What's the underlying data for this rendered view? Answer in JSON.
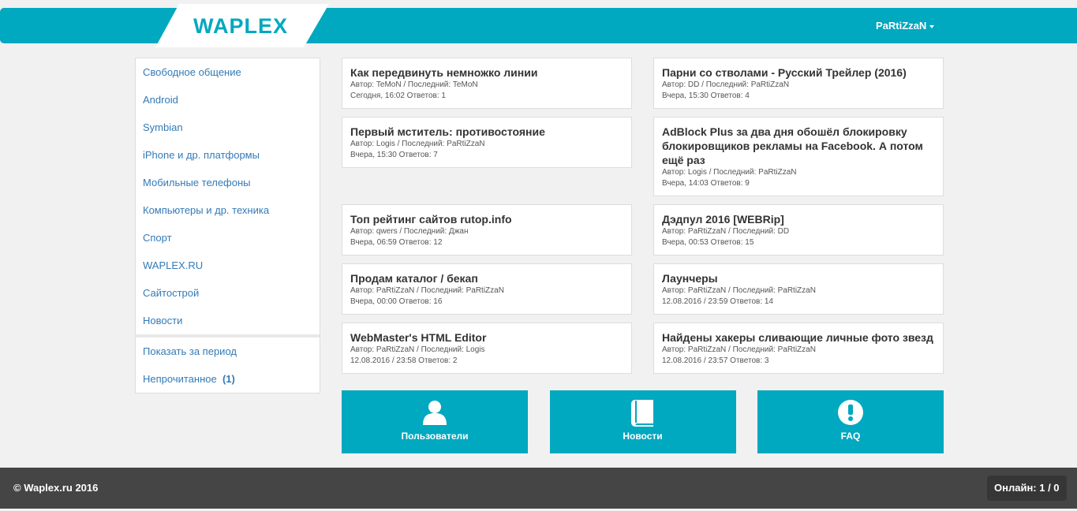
{
  "header": {
    "logo": "WAPLEX",
    "user": "PaRtiZzaN",
    "accent": "#00a8c0"
  },
  "sidebar": {
    "items": [
      "Свободное общение",
      "Android",
      "Symbian",
      "iPhone и др. платформы",
      "Мобильные телефоны",
      "Компьютеры и др. техника",
      "Спорт",
      "WAPLEX.RU",
      "Сайтострой",
      "Новости"
    ],
    "period": "Показать за период",
    "unread_label": "Непрочитанное",
    "unread_count": "(1)"
  },
  "topics": [
    {
      "title": "Как передвинуть немножко линии",
      "meta": "Автор: TeMoN /  Последний: TeMoN",
      "info": "Сегодня, 16:02 Ответов: 1"
    },
    {
      "title": "Парни со стволами - Русский Трейлер (2016)",
      "meta": "Автор: DD /  Последний: PaRtiZzaN",
      "info": "Вчера, 15:30 Ответов: 4"
    },
    {
      "title": "Первый мститель: противостояние",
      "meta": "Автор: Logis /  Последний: PaRtiZzaN",
      "info": "Вчера, 15:30 Ответов: 7"
    },
    {
      "title": "AdBlock Plus за два дня обошёл блокировку блокировщиков рекламы на Facebook. А потом ещё раз",
      "meta": "Автор: Logis /  Последний: PaRtiZzaN",
      "info": "Вчера, 14:03 Ответов: 9"
    },
    {
      "title": "Топ рейтинг сайтов rutop.info",
      "meta": "Автор: qwers /  Последний: Джан",
      "info": "Вчера, 06:59 Ответов: 12"
    },
    {
      "title": "Дэдпул 2016 [WEBRip]",
      "meta": "Автор: PaRtiZzaN /  Последний: DD",
      "info": "Вчера, 00:53 Ответов: 15"
    },
    {
      "title": "Продам каталог / бекап",
      "meta": "Автор: PaRtiZzaN /  Последний: PaRtiZzaN",
      "info": "Вчера, 00:00 Ответов: 16"
    },
    {
      "title": "Лаунчеры",
      "meta": "Автор: PaRtiZzaN /  Последний: PaRtiZzaN",
      "info": "12.08.2016 / 23:59 Ответов: 14"
    },
    {
      "title": "WebMaster's HTML Editor",
      "meta": "Автор: PaRtiZzaN /  Последний: Logis",
      "info": "12.08.2016 / 23:58 Ответов: 2"
    },
    {
      "title": "Найдены хакеры сливающие личные фото звезд",
      "meta": "Автор: PaRtiZzaN /  Последний: PaRtiZzaN",
      "info": "12.08.2016 / 23:57 Ответов: 3"
    }
  ],
  "buttons": [
    {
      "label": "Пользователи",
      "icon": "user-icon"
    },
    {
      "label": "Новости",
      "icon": "book-icon"
    },
    {
      "label": "FAQ",
      "icon": "exclamation-icon"
    }
  ],
  "footer": {
    "copyright": "© Waplex.ru 2016",
    "online": "Онлайн: 1 / 0"
  }
}
